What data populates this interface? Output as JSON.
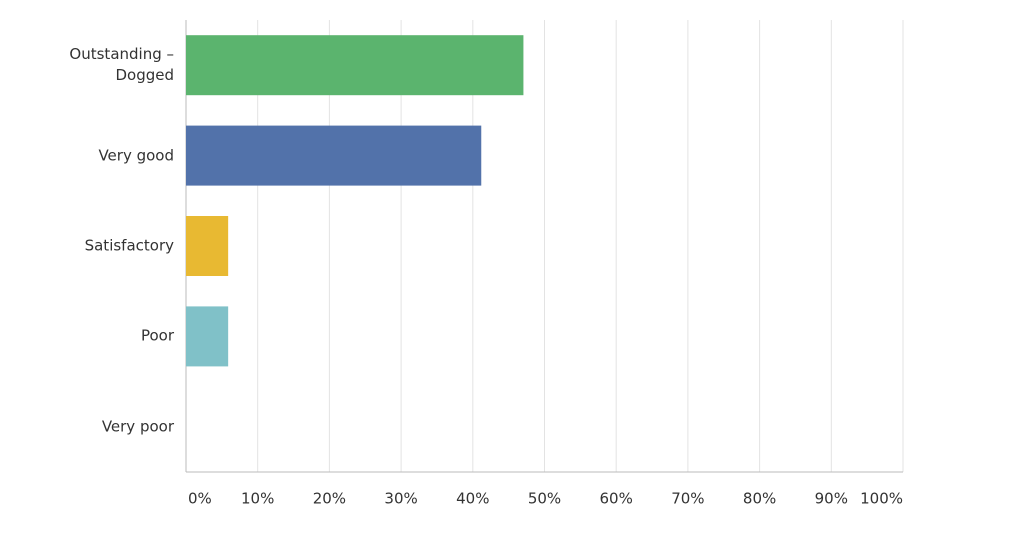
{
  "chart_data": {
    "type": "hbar",
    "categories": [
      "Outstanding – Dogged",
      "Very good",
      "Satisfactory",
      "Poor",
      "Very poor"
    ],
    "values": [
      47.06,
      41.18,
      5.88,
      5.88,
      0
    ],
    "colors": [
      "#5bb46e",
      "#5272aa",
      "#e8b932",
      "#80c1c8",
      "#d67862"
    ],
    "xlim": [
      0,
      100
    ],
    "xticks": [
      {
        "value": 0,
        "label": "0%"
      },
      {
        "value": 10,
        "label": "10%"
      },
      {
        "value": 20,
        "label": "20%"
      },
      {
        "value": 30,
        "label": "30%"
      },
      {
        "value": 40,
        "label": "40%"
      },
      {
        "value": 50,
        "label": "50%"
      },
      {
        "value": 60,
        "label": "60%"
      },
      {
        "value": 70,
        "label": "70%"
      },
      {
        "value": 80,
        "label": "80%"
      },
      {
        "value": 90,
        "label": "90%"
      },
      {
        "value": 100,
        "label": "100%"
      }
    ],
    "grid": true
  }
}
